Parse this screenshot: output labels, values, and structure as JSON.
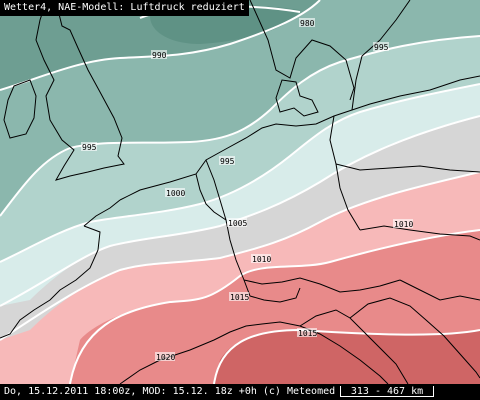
{
  "title": "Wetter4, NAE-Modell: Luftdruck reduziert",
  "footer": {
    "text": "Do, 15.12.2011 18:00z, MOD: 15.12. 18z +0h (c) Meteomed",
    "scale": "313 - 467 km"
  },
  "isobars": [
    {
      "id": "980",
      "label": "980"
    },
    {
      "id": "990",
      "label": "990"
    },
    {
      "id": "995a",
      "label": "995"
    },
    {
      "id": "995b",
      "label": "995"
    },
    {
      "id": "995c",
      "label": "995"
    },
    {
      "id": "1000",
      "label": "1000"
    },
    {
      "id": "1005",
      "label": "1005"
    },
    {
      "id": "1010a",
      "label": "1010"
    },
    {
      "id": "1010b",
      "label": "1010"
    },
    {
      "id": "1015a",
      "label": "1015"
    },
    {
      "id": "1015b",
      "label": "1015"
    },
    {
      "id": "1020",
      "label": "1020"
    }
  ],
  "colors": {
    "below_990": "#6e9e92",
    "band_990_995": "#8bb7ad",
    "band_995_1000": "#b1d3cc",
    "band_1000_1005": "#d8ecea",
    "band_1005_1010": "#d6d6d6",
    "band_1010_1015": "#f7b9b9",
    "band_1015_1020": "#e88a8a",
    "above_1020": "#cf6565",
    "isobar": "#ffffff",
    "coastline": "#000000"
  }
}
